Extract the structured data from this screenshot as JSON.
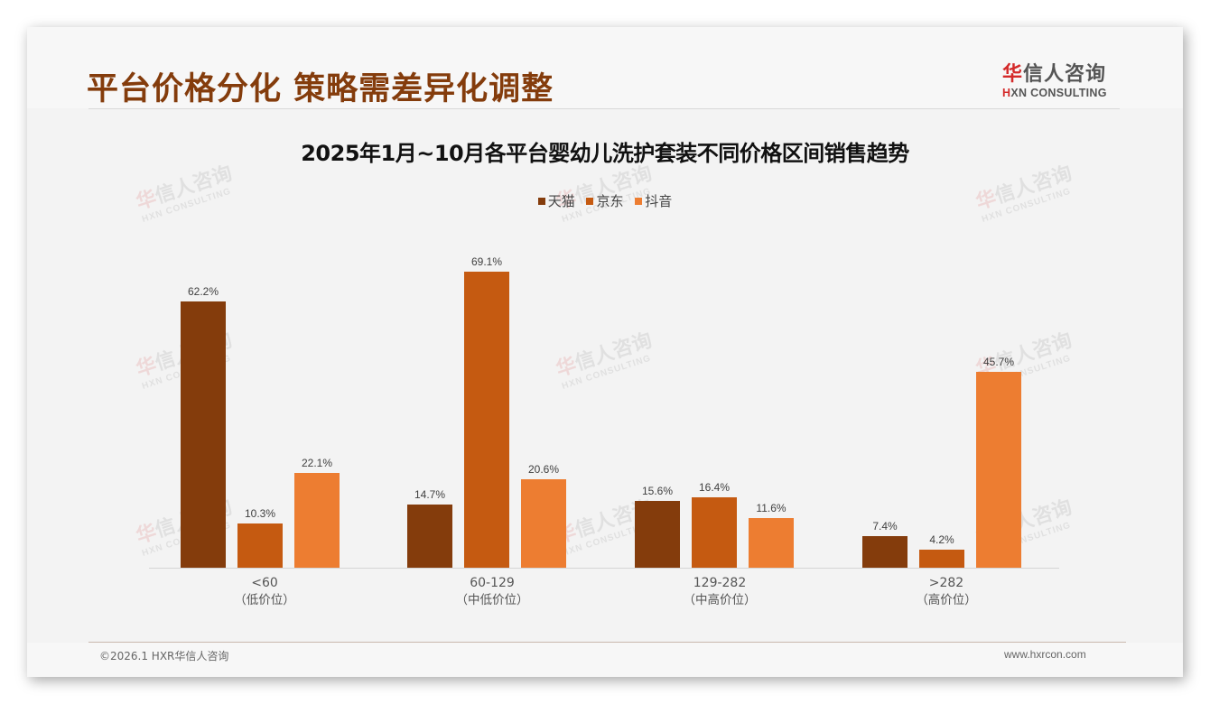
{
  "header": {
    "title": "平台价格分化 策略需差异化调整",
    "logo_cn_first": "华",
    "logo_cn_rest": "信人咨询",
    "logo_en_first": "H",
    "logo_en_rest": "XN CONSULTING"
  },
  "watermark": {
    "cn_first": "华",
    "cn_rest": "信人咨询",
    "en": "HXN CONSULTING"
  },
  "footer": {
    "copyright": "©2026.1 HXR华信人咨询",
    "website": "www.hxrcon.com"
  },
  "chart_data": {
    "type": "bar",
    "title": "2025年1月~10月各平台婴幼儿洗护套装不同价格区间销售趋势",
    "xlabel": "",
    "ylabel": "",
    "ylim": [
      0,
      75
    ],
    "grid": false,
    "legend_position": "top",
    "categories": [
      "<60",
      "60-129",
      "129-282",
      ">282"
    ],
    "category_sublabels": [
      "（低价位）",
      "（中低价位）",
      "（中高价位）",
      "（高价位）"
    ],
    "series": [
      {
        "name": "天猫",
        "color": "#843c0c",
        "values": [
          62.2,
          14.7,
          15.6,
          7.4
        ],
        "labels": [
          "62.2%",
          "14.7%",
          "15.6%",
          "7.4%"
        ]
      },
      {
        "name": "京东",
        "color": "#c55a11",
        "values": [
          10.3,
          69.1,
          16.4,
          4.2
        ],
        "labels": [
          "10.3%",
          "69.1%",
          "16.4%",
          "4.2%"
        ]
      },
      {
        "name": "抖音",
        "color": "#ed7d31",
        "values": [
          22.1,
          20.6,
          11.6,
          45.7
        ],
        "labels": [
          "22.1%",
          "20.6%",
          "11.6%",
          "45.7%"
        ]
      }
    ]
  }
}
